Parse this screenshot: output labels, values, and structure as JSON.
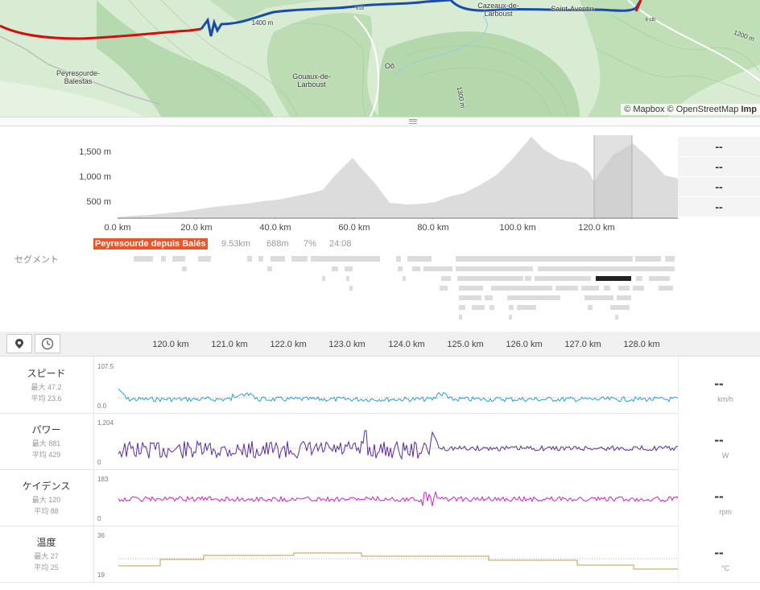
{
  "map": {
    "labels": [
      "Peyresourde-\nBalestas",
      "Gouaux-de-\nLarboust",
      "Oô",
      "Cazeaux-de-\nLarboust",
      "Saint-Aventin",
      "1400 m",
      "1200 m",
      "1300 m",
      "618",
      "6 ctb"
    ],
    "attribution_prefix": "© Mapbox © OpenStreetMap",
    "attribution_bold": "Imp",
    "colors": {
      "red_route": "#d40e0e",
      "blue_route": "#1a4bab",
      "terrain": "#cfe7c9"
    }
  },
  "elevation": {
    "y_labels": [
      "1,500 m",
      "1,000 m",
      "500 m"
    ],
    "x_labels": [
      "0.0 km",
      "20.0 km",
      "40.0 km",
      "60.0 km",
      "80.0 km",
      "100.0 km",
      "120.0 km"
    ],
    "side_values": [
      "--",
      "--",
      "--",
      "--"
    ]
  },
  "segments": {
    "label": "セグメント",
    "badge": "Peyresourde depuis Balés",
    "stats": [
      "9.53km",
      "688m",
      "7%",
      "24:08"
    ],
    "accent": "#e8562a"
  },
  "toolbar": {
    "x_labels": [
      "120.0 km",
      "121.0 km",
      "122.0 km",
      "123.0 km",
      "124.0 km",
      "125.0 km",
      "126.0 km",
      "127.0 km",
      "128.0 km"
    ],
    "buttons": [
      "pin-icon",
      "clock-icon"
    ]
  },
  "streams": [
    {
      "title": "スピード",
      "max": "最大 47.2",
      "avg": "平均 23.6",
      "ytop": "107.5",
      "ybot": "0.0",
      "value": "--",
      "unit": "km/h",
      "color": "#2b9fcf"
    },
    {
      "title": "パワー",
      "max": "最大 881",
      "avg": "平均 429",
      "ytop": "1,204",
      "ybot": "0",
      "value": "--",
      "unit": "W",
      "color": "#5a2a9e"
    },
    {
      "title": "ケイデンス",
      "max": "最大 120",
      "avg": "平均 88",
      "ytop": "183",
      "ybot": "0",
      "value": "--",
      "unit": "rpm",
      "color": "#d41ec9"
    },
    {
      "title": "温度",
      "max": "最大 27",
      "avg": "平均 25",
      "ytop": "36",
      "ybot": "19",
      "value": "--",
      "unit": "°C",
      "color": "#c49a4a"
    }
  ]
}
